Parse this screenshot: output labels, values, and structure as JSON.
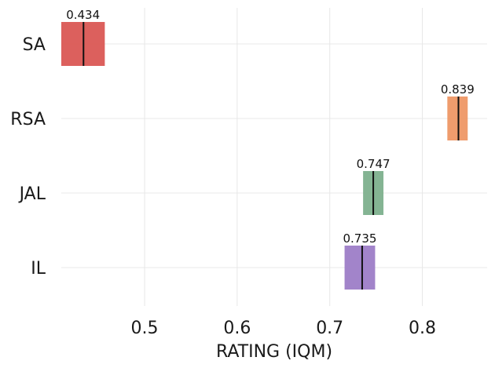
{
  "chart_data": {
    "type": "interval",
    "xlabel": "RATING (IQM)",
    "xlim": [
      0.41,
      0.87
    ],
    "xticks": [
      0.5,
      0.6,
      0.7,
      0.8
    ],
    "xtick_labels": [
      "0.5",
      "0.6",
      "0.7",
      "0.8"
    ],
    "grid": true,
    "categories": [
      "SA",
      "RSA",
      "JAL",
      "IL"
    ],
    "series": [
      {
        "category": "SA",
        "value": 0.434,
        "label": "0.434",
        "ci": [
          0.41,
          0.457
        ],
        "color": "#d9534f"
      },
      {
        "category": "RSA",
        "value": 0.839,
        "label": "0.839",
        "ci": [
          0.827,
          0.849
        ],
        "color": "#ee9461"
      },
      {
        "category": "JAL",
        "value": 0.747,
        "label": "0.747",
        "ci": [
          0.736,
          0.758
        ],
        "color": "#7aae8a"
      },
      {
        "category": "IL",
        "value": 0.735,
        "label": "0.735",
        "ci": [
          0.716,
          0.749
        ],
        "color": "#9a7ac6"
      }
    ]
  }
}
